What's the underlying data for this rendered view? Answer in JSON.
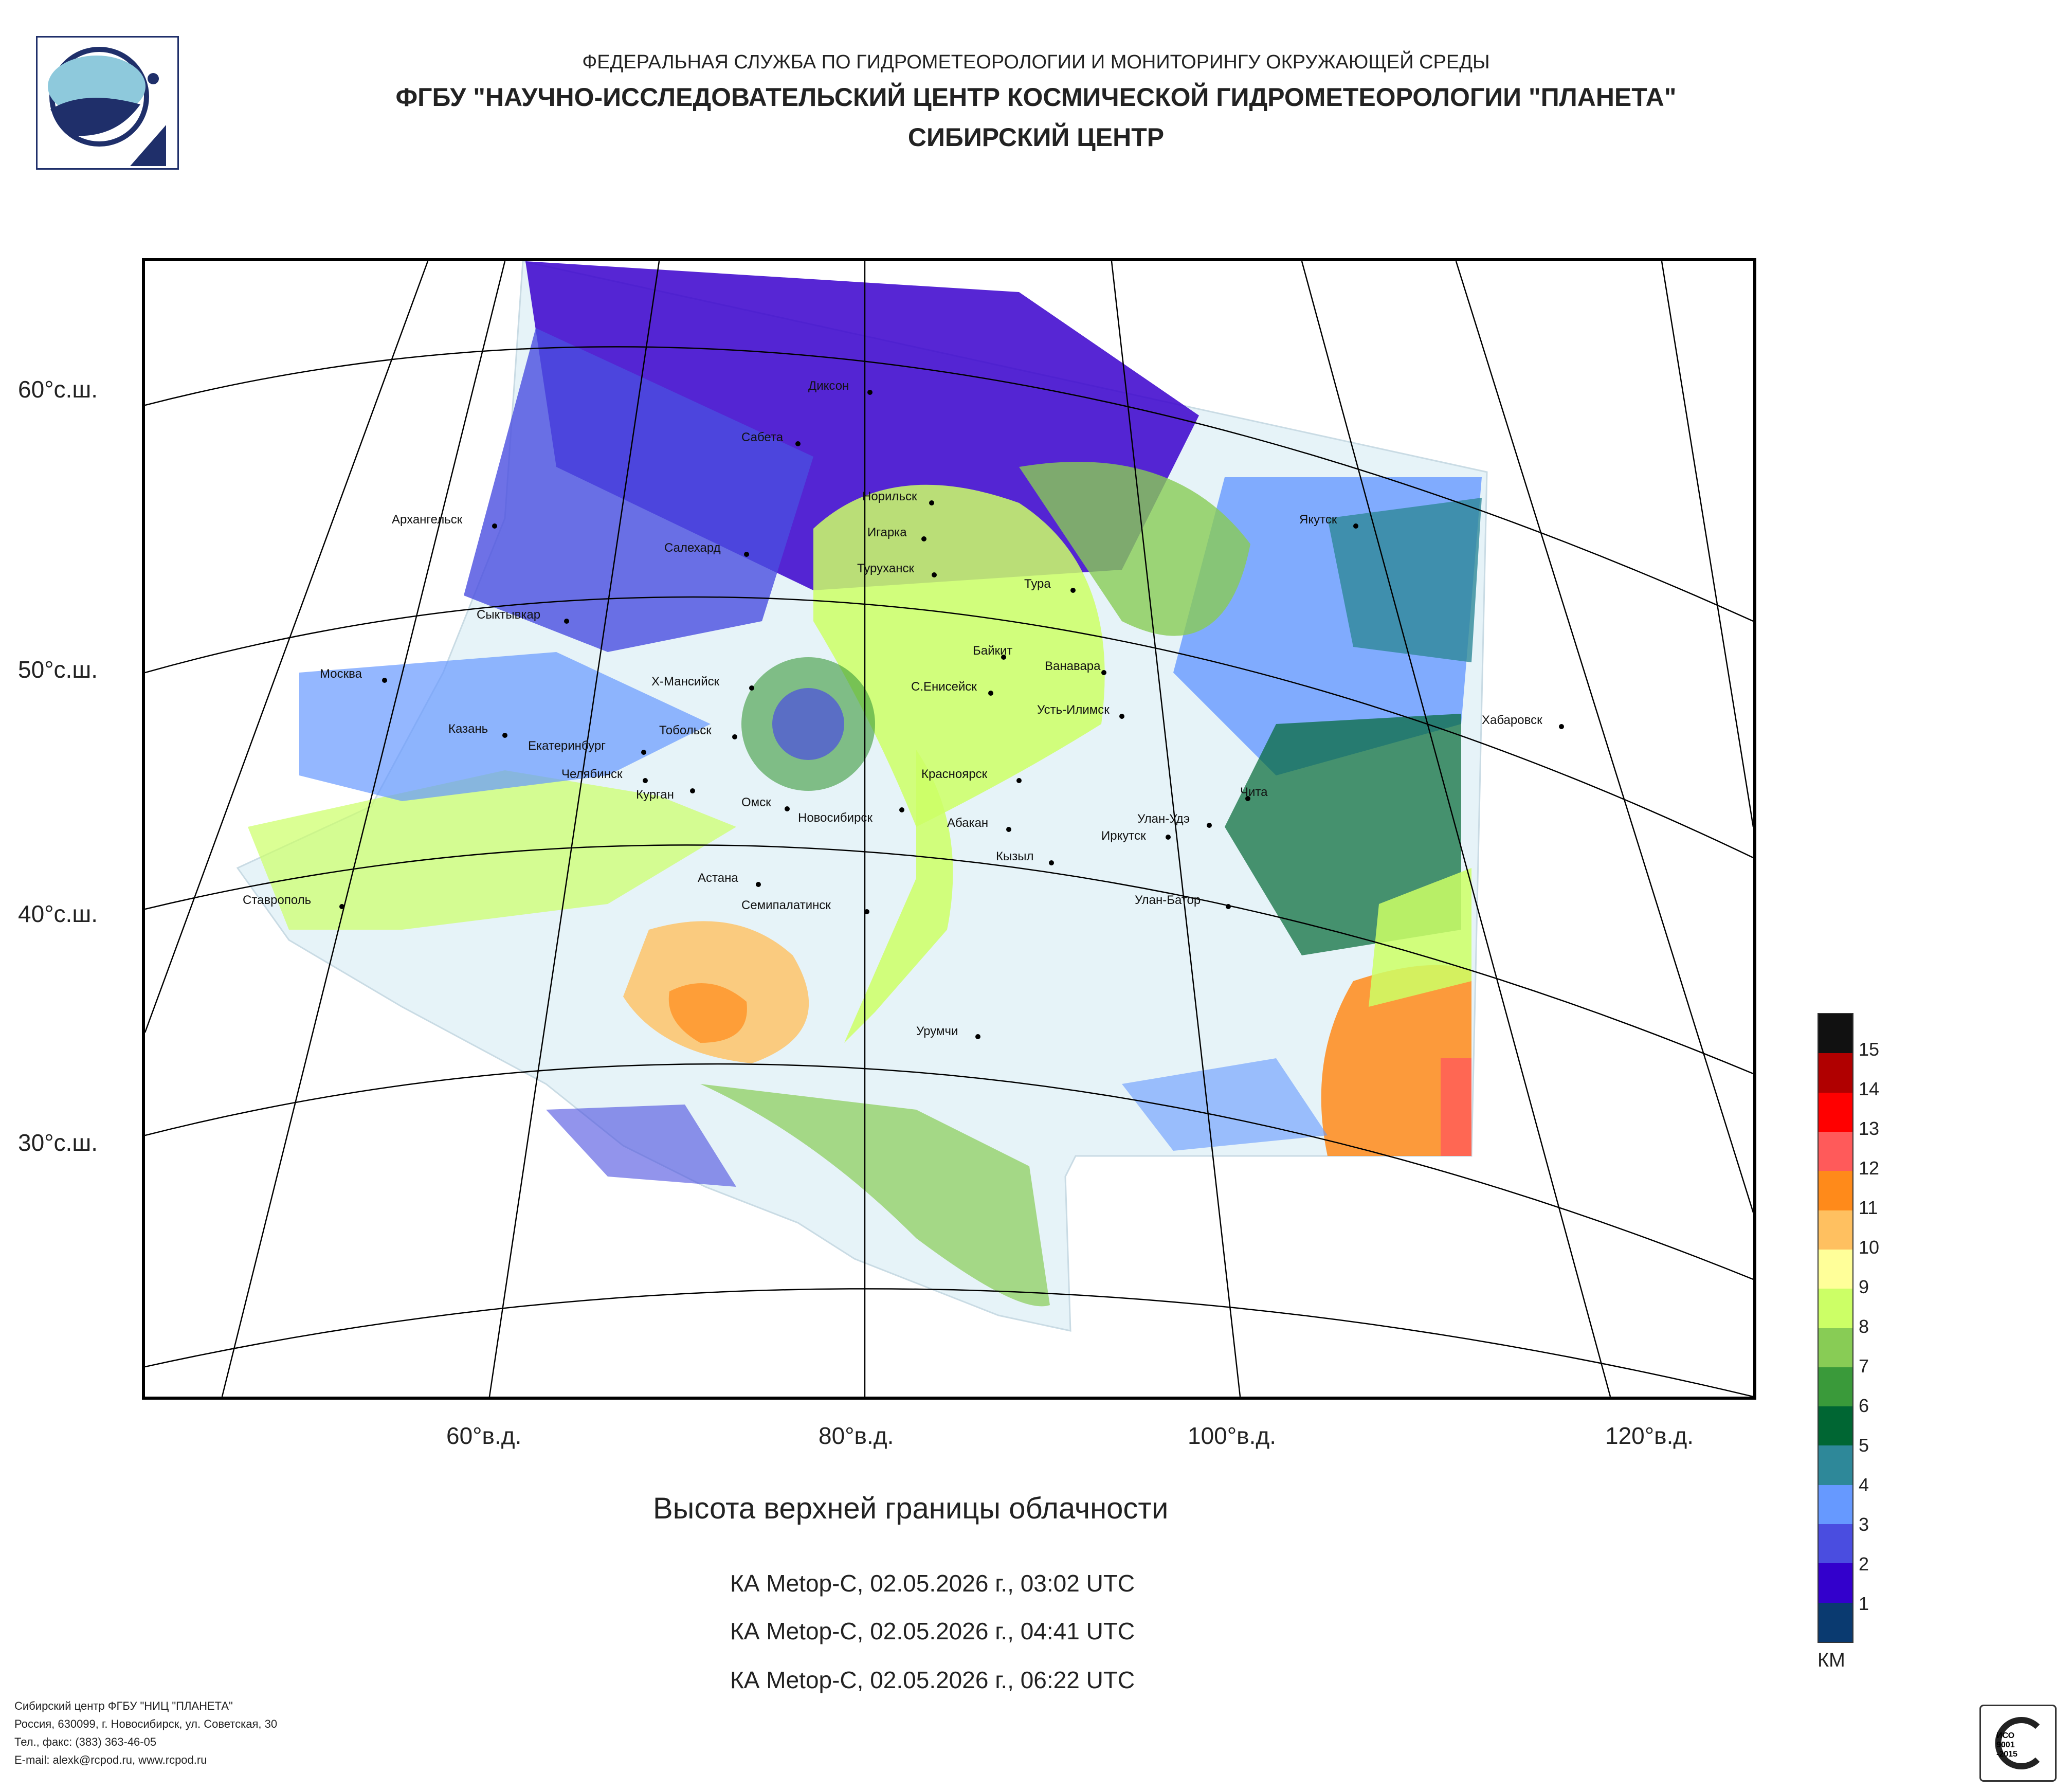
{
  "header": {
    "line1": "ФЕДЕРАЛЬНАЯ СЛУЖБА ПО ГИДРОМЕТЕОРОЛОГИИ И МОНИТОРИНГУ ОКРУЖАЮЩЕЙ СРЕДЫ",
    "line2": "ФГБУ \"НАУЧНО-ИССЛЕДОВАТЕЛЬСКИЙ ЦЕНТР КОСМИЧЕСКОЙ ГИДРОМЕТЕОРОЛОГИИ \"ПЛАНЕТА\"",
    "line3": "СИБИРСКИЙ ЦЕНТР"
  },
  "lat_labels": [
    "60°с.ш.",
    "50°с.ш.",
    "40°с.ш.",
    "30°с.ш."
  ],
  "lon_labels": [
    "60°в.д.",
    "80°в.д.",
    "100°в.д.",
    "120°в.д."
  ],
  "cities": [
    "Диксон",
    "Сабета",
    "Норильск",
    "Игарка",
    "Туруханск",
    "Тура",
    "Якутск",
    "Архангельск",
    "Салехард",
    "Сыктывкар",
    "Байкит",
    "Ванавара",
    "Х-Мансийск",
    "С.Енисейск",
    "Усть-Илимск",
    "Москва",
    "Казань",
    "Екатеринбург",
    "Тобольск",
    "Хабаровск",
    "Челябинск",
    "Курган",
    "Омск",
    "Новосибирск",
    "Красноярск",
    "Чита",
    "Абакан",
    "Улан-Удэ",
    "Иркутск",
    "Кызыл",
    "Астана",
    "Ставрополь",
    "Семипалатинск",
    "Улан-Батор",
    "Урумчи"
  ],
  "title": "Высота верхней границы облачности",
  "satellites": [
    "КА Metop-C, 02.05.2026 г., 03:02 UTC",
    "КА Metop-C, 02.05.2026 г., 04:41 UTC",
    "КА Metop-C, 02.05.2026 г., 06:22 UTC"
  ],
  "legend": {
    "unit": "КМ",
    "levels": [
      "15",
      "14",
      "13",
      "12",
      "11",
      "10",
      "9",
      "8",
      "7",
      "6",
      "5",
      "4",
      "3",
      "2",
      "1"
    ],
    "colors": [
      "#111111",
      "#b00000",
      "#ff0000",
      "#ff5a5a",
      "#ff8a1a",
      "#ffc060",
      "#ffff99",
      "#ccff66",
      "#88cc55",
      "#3a9a3a",
      "#006633",
      "#2e8899",
      "#6699ff",
      "#4a4de0",
      "#3300cc",
      "#0a3a70"
    ]
  },
  "footer": [
    "Сибирский центр ФГБУ \"НИЦ \"ПЛАНЕТА\"",
    "Россия, 630099, г. Новосибирск, ул. Советская, 30",
    "Тел., факс: (383) 363-46-05",
    "E-mail: alexk@rcpod.ru, www.rcpod.ru"
  ]
}
